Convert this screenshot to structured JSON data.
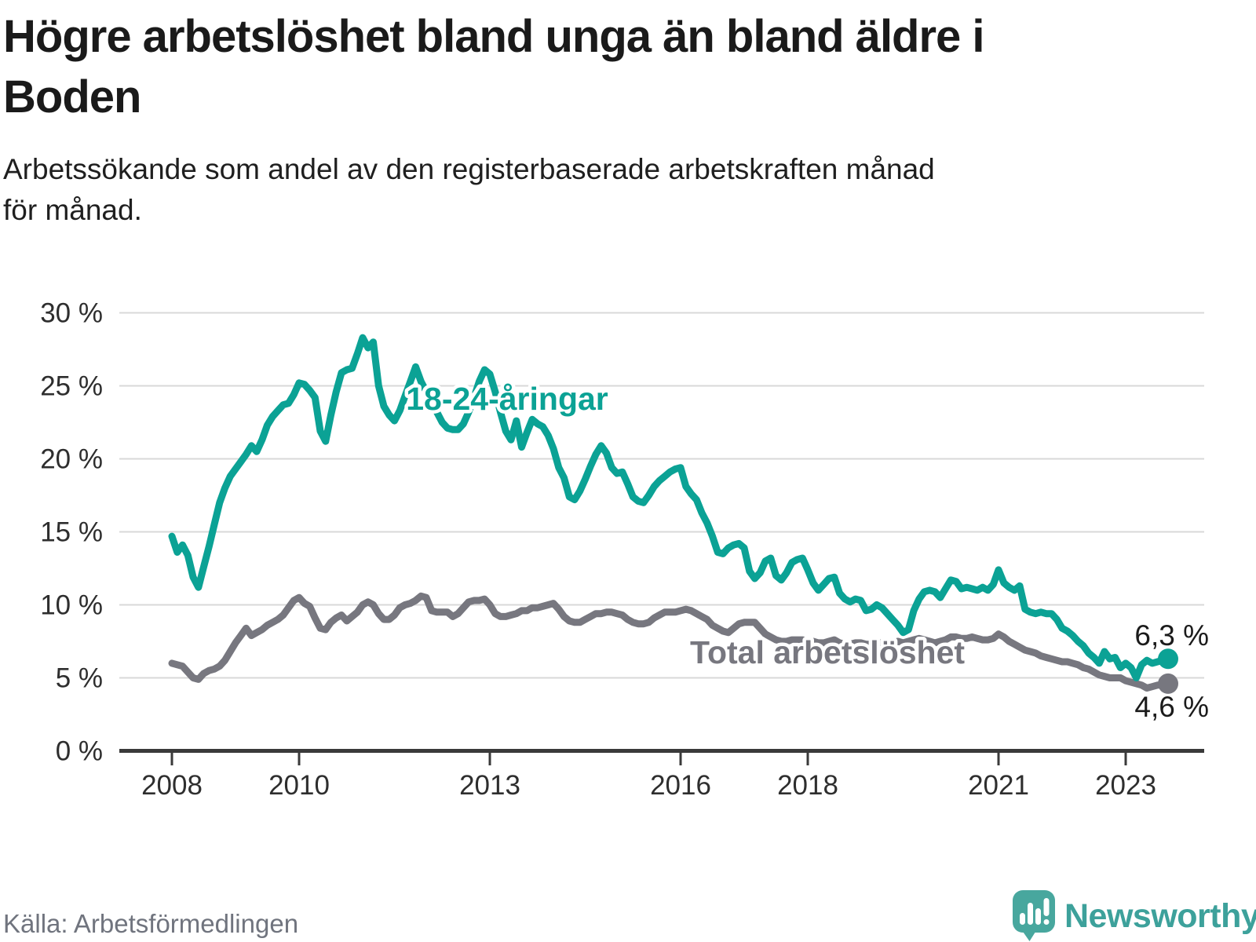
{
  "header": {
    "title_line1": "Högre arbetslöshet bland unga än bland äldre i",
    "title_line2": "Boden",
    "subtitle_line1": "Arbetssökande som andel av den registerbaserade arbetskraften månad",
    "subtitle_line2": "för månad."
  },
  "footer": {
    "source": "Källa: Arbetsförmedlingen",
    "logo_text": "Newsworthy"
  },
  "colors": {
    "youth_line": "#0ba295",
    "total_line": "#77777f",
    "grid": "#d8d8d8",
    "axis": "#3a3a3a",
    "annotation_text": "#1b1b1b",
    "logo_teal": "#48a79e",
    "logo_text_teal": "#3da19b"
  },
  "chart_data": {
    "type": "line",
    "title": "Högre arbetslöshet bland unga än bland äldre i Boden",
    "xlabel": "",
    "ylabel": "Arbetssökande som andel av den registerbaserade arbetskraften",
    "x_start": "2008-01",
    "x_end": "2023-09",
    "frequency": "monthly",
    "ylim": [
      0,
      30
    ],
    "grid": "horizontal",
    "legend_position": "inline-labels",
    "y_ticks": [
      {
        "value": 0,
        "label": "0 %"
      },
      {
        "value": 5,
        "label": "5 %"
      },
      {
        "value": 10,
        "label": "10 %"
      },
      {
        "value": 15,
        "label": "15 %"
      },
      {
        "value": 20,
        "label": "20 %"
      },
      {
        "value": 25,
        "label": "25 %"
      },
      {
        "value": 30,
        "label": "30 %"
      }
    ],
    "x_ticks": [
      {
        "year": 2008,
        "label": "2008"
      },
      {
        "year": 2010,
        "label": "2010"
      },
      {
        "year": 2013,
        "label": "2013"
      },
      {
        "year": 2016,
        "label": "2016"
      },
      {
        "year": 2018,
        "label": "2018"
      },
      {
        "year": 2021,
        "label": "2021"
      },
      {
        "year": 2023,
        "label": "2023"
      }
    ],
    "series": [
      {
        "name": "18-24-åringar",
        "color": "#0ba295",
        "end_label": "6,3 %",
        "end_value": 6.3,
        "values": [
          14.7,
          13.6,
          14.1,
          13.4,
          11.9,
          11.2,
          12.6,
          14.0,
          15.5,
          17.0,
          18.0,
          18.8,
          19.3,
          19.8,
          20.3,
          20.9,
          20.5,
          21.3,
          22.3,
          22.9,
          23.3,
          23.7,
          23.8,
          24.4,
          25.2,
          25.1,
          24.7,
          24.2,
          21.9,
          21.2,
          23.0,
          24.6,
          25.9,
          26.1,
          26.2,
          27.2,
          28.3,
          27.6,
          28.0,
          25.0,
          23.6,
          23.0,
          22.6,
          23.3,
          24.3,
          25.3,
          26.3,
          25.3,
          24.6,
          23.8,
          23.2,
          22.5,
          22.1,
          22.0,
          22.0,
          22.4,
          23.2,
          24.2,
          25.3,
          26.1,
          25.8,
          24.6,
          23.2,
          21.9,
          21.3,
          22.6,
          20.8,
          21.8,
          22.7,
          22.4,
          22.2,
          21.6,
          20.7,
          19.4,
          18.7,
          17.4,
          17.2,
          17.8,
          18.6,
          19.5,
          20.3,
          20.9,
          20.4,
          19.4,
          19.0,
          19.1,
          18.3,
          17.4,
          17.1,
          17.0,
          17.5,
          18.1,
          18.5,
          18.8,
          19.1,
          19.3,
          19.4,
          18.1,
          17.6,
          17.2,
          16.3,
          15.6,
          14.7,
          13.6,
          13.5,
          13.9,
          14.1,
          14.2,
          13.9,
          12.3,
          11.8,
          12.2,
          13.0,
          13.2,
          12.0,
          11.7,
          12.2,
          12.9,
          13.1,
          13.2,
          12.4,
          11.5,
          11.0,
          11.4,
          11.8,
          11.9,
          10.8,
          10.4,
          10.2,
          10.4,
          10.3,
          9.6,
          9.7,
          10.0,
          9.8,
          9.4,
          9.0,
          8.6,
          8.1,
          8.3,
          9.6,
          10.4,
          10.9,
          11.0,
          10.9,
          10.5,
          11.1,
          11.7,
          11.6,
          11.1,
          11.2,
          11.1,
          11.0,
          11.2,
          11.0,
          11.4,
          12.4,
          11.5,
          11.2,
          11.0,
          11.3,
          9.7,
          9.5,
          9.4,
          9.5,
          9.4,
          9.4,
          9.0,
          8.4,
          8.2,
          7.9,
          7.5,
          7.2,
          6.7,
          6.4,
          6.0,
          6.8,
          6.3,
          6.4,
          5.7,
          6.0,
          5.7,
          5.0,
          5.9,
          6.2,
          6.0,
          6.1,
          6.2,
          6.3
        ]
      },
      {
        "name": "Total arbetslöshet",
        "color": "#77777f",
        "end_label": "4,6 %",
        "end_value": 4.6,
        "values": [
          6.0,
          5.9,
          5.8,
          5.4,
          5.0,
          4.9,
          5.3,
          5.5,
          5.6,
          5.8,
          6.2,
          6.8,
          7.4,
          7.9,
          8.4,
          7.9,
          8.1,
          8.3,
          8.6,
          8.8,
          9.0,
          9.3,
          9.8,
          10.3,
          10.5,
          10.1,
          9.9,
          9.1,
          8.4,
          8.3,
          8.8,
          9.1,
          9.3,
          8.9,
          9.2,
          9.5,
          10.0,
          10.2,
          10.0,
          9.4,
          9.0,
          9.0,
          9.3,
          9.8,
          10.0,
          10.1,
          10.3,
          10.6,
          10.5,
          9.6,
          9.5,
          9.5,
          9.5,
          9.2,
          9.4,
          9.8,
          10.2,
          10.3,
          10.3,
          10.4,
          10.0,
          9.4,
          9.2,
          9.2,
          9.3,
          9.4,
          9.6,
          9.6,
          9.8,
          9.8,
          9.9,
          10.0,
          10.1,
          9.7,
          9.2,
          8.9,
          8.8,
          8.8,
          9.0,
          9.2,
          9.4,
          9.4,
          9.5,
          9.5,
          9.4,
          9.3,
          9.0,
          8.8,
          8.7,
          8.7,
          8.8,
          9.1,
          9.3,
          9.5,
          9.5,
          9.5,
          9.6,
          9.7,
          9.6,
          9.4,
          9.2,
          9.0,
          8.6,
          8.4,
          8.2,
          8.1,
          8.4,
          8.7,
          8.8,
          8.8,
          8.8,
          8.4,
          8.0,
          7.8,
          7.6,
          7.5,
          7.5,
          7.6,
          7.6,
          7.6,
          7.5,
          7.5,
          7.4,
          7.4,
          7.5,
          7.6,
          7.4,
          7.3,
          7.3,
          7.4,
          7.4,
          7.3,
          7.3,
          7.4,
          7.4,
          7.3,
          7.4,
          7.5,
          7.4,
          7.5,
          7.6,
          7.7,
          7.6,
          7.5,
          7.4,
          7.5,
          7.6,
          7.8,
          7.8,
          7.7,
          7.7,
          7.8,
          7.7,
          7.6,
          7.6,
          7.7,
          8.0,
          7.8,
          7.5,
          7.3,
          7.1,
          6.9,
          6.8,
          6.7,
          6.5,
          6.4,
          6.3,
          6.2,
          6.1,
          6.1,
          6.0,
          5.9,
          5.7,
          5.6,
          5.4,
          5.2,
          5.1,
          5.0,
          5.0,
          5.0,
          4.8,
          4.7,
          4.6,
          4.5,
          4.3,
          4.4,
          4.5,
          4.5,
          4.6
        ]
      }
    ]
  }
}
